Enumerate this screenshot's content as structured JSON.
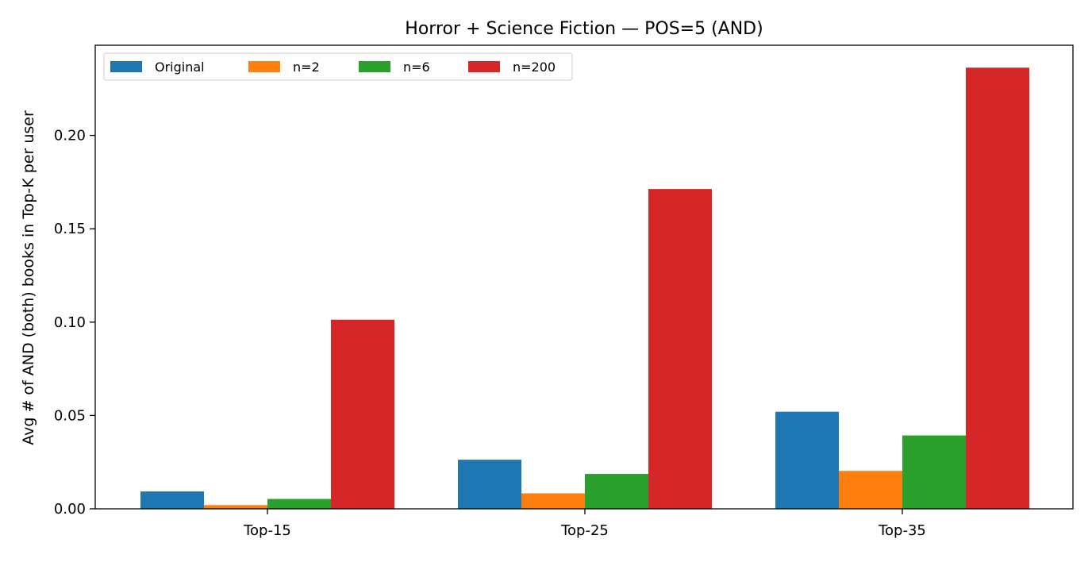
{
  "chart_data": {
    "type": "bar",
    "title": "Horror + Science Fiction — POS=5 (AND)",
    "xlabel": "",
    "ylabel": "Avg # of AND (both) books in Top-K per user",
    "categories": [
      "Top-15",
      "Top-25",
      "Top-35"
    ],
    "series": [
      {
        "name": "Original",
        "color": "#1f77b4",
        "values": [
          0.0093,
          0.0263,
          0.052
        ]
      },
      {
        "name": "n=2",
        "color": "#ff7f0e",
        "values": [
          0.002,
          0.0083,
          0.0203
        ]
      },
      {
        "name": "n=6",
        "color": "#2ca02c",
        "values": [
          0.0053,
          0.0187,
          0.0393
        ]
      },
      {
        "name": "n=200",
        "color": "#d62728",
        "values": [
          0.1013,
          0.1713,
          0.2363
        ]
      }
    ],
    "ylim": [
      0,
      0.2483
    ],
    "yticks": [
      "0.00",
      "0.05",
      "0.10",
      "0.15",
      "0.20"
    ],
    "grid": false,
    "legend_position": "top-left"
  }
}
